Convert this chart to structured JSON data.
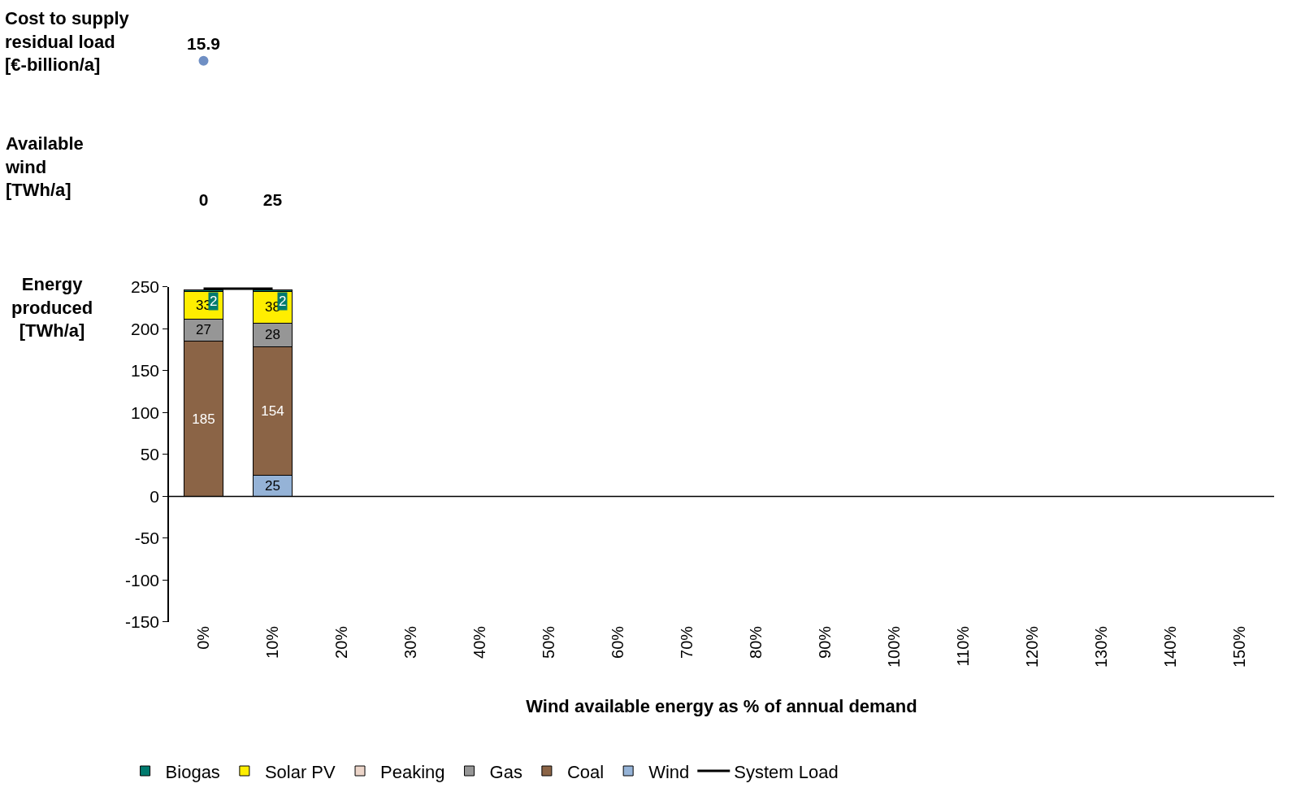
{
  "chart_data": [
    {
      "type": "other",
      "ylabel": "Cost to supply residual load [€-billion/a]",
      "categories": [
        null,
        null,
        null,
        null,
        null,
        null,
        null,
        null,
        null,
        null,
        null,
        null,
        null,
        null,
        null,
        null
      ],
      "values": [
        15.9,
        null,
        null,
        null,
        null,
        null,
        null,
        null,
        null,
        null,
        null,
        null,
        null,
        null,
        null,
        null
      ],
      "color": "#6f8fc4",
      "data_labels": true
    },
    {
      "type": "other",
      "ylabel": "Available wind [TWh/a]",
      "categories": [
        null,
        null,
        null,
        null,
        null,
        null,
        null,
        null,
        null,
        null,
        null,
        null,
        null,
        null,
        null,
        null
      ],
      "values": [
        0,
        25,
        null,
        null,
        null,
        null,
        null,
        null,
        null,
        null,
        null,
        null,
        null,
        null,
        null,
        null
      ],
      "data_labels": true
    },
    {
      "type": "bar",
      "stacked": true,
      "ylabel": "Energy produced [TWh/a]",
      "xlabel": "Wind available energy as % of annual demand",
      "categories": [
        "0%",
        "10%",
        "20%",
        "30%",
        "40%",
        "50%",
        "60%",
        "70%",
        "80%",
        "90%",
        "100%",
        "110%",
        "120%",
        "130%",
        "140%",
        "150%"
      ],
      "series": [
        {
          "name": "Wind",
          "color": "#95b3d7",
          "values": [
            null,
            25,
            null,
            null,
            null,
            null,
            null,
            null,
            null,
            null,
            null,
            null,
            null,
            null,
            null,
            null
          ],
          "value_labels": [
            null,
            "25",
            null,
            null,
            null,
            null,
            null,
            null,
            null,
            null,
            null,
            null,
            null,
            null,
            null,
            null
          ]
        },
        {
          "name": "Coal",
          "color": "#8b6446",
          "values": [
            185,
            154,
            null,
            null,
            null,
            null,
            null,
            null,
            null,
            null,
            null,
            null,
            null,
            null,
            null,
            null
          ],
          "value_labels": [
            "185",
            "154",
            null,
            null,
            null,
            null,
            null,
            null,
            null,
            null,
            null,
            null,
            null,
            null,
            null,
            null
          ]
        },
        {
          "name": "Gas",
          "color": "#969696",
          "values": [
            27,
            28,
            null,
            null,
            null,
            null,
            null,
            null,
            null,
            null,
            null,
            null,
            null,
            null,
            null,
            null
          ],
          "value_labels": [
            "27",
            "28",
            null,
            null,
            null,
            null,
            null,
            null,
            null,
            null,
            null,
            null,
            null,
            null,
            null,
            null
          ]
        },
        {
          "name": "Peaking",
          "color": "#ecd5c9",
          "values": [
            null,
            null,
            null,
            null,
            null,
            null,
            null,
            null,
            null,
            null,
            null,
            null,
            null,
            null,
            null,
            null
          ]
        },
        {
          "name": "Solar PV",
          "color": "#ffee00",
          "values": [
            33,
            38,
            null,
            null,
            null,
            null,
            null,
            null,
            null,
            null,
            null,
            null,
            null,
            null,
            null,
            null
          ],
          "value_labels": [
            "33",
            "38",
            null,
            null,
            null,
            null,
            null,
            null,
            null,
            null,
            null,
            null,
            null,
            null,
            null,
            null
          ]
        },
        {
          "name": "Biogas",
          "color": "#007a6e",
          "values": [
            2,
            2,
            null,
            null,
            null,
            null,
            null,
            null,
            null,
            null,
            null,
            null,
            null,
            null,
            null,
            null
          ],
          "value_labels": [
            "2",
            "2",
            null,
            null,
            null,
            null,
            null,
            null,
            null,
            null,
            null,
            null,
            null,
            null,
            null,
            null
          ]
        },
        {
          "name": "System Load",
          "type": "line",
          "color": "#000000",
          "marker": "none",
          "values": [
            248,
            248,
            null,
            null,
            null,
            null,
            null,
            null,
            null,
            null,
            null,
            null,
            null,
            null,
            null,
            null
          ]
        }
      ],
      "ylim": [
        -150,
        250
      ],
      "yticks": [
        -150,
        -100,
        -50,
        0,
        50,
        100,
        150,
        200,
        250
      ],
      "grid": false,
      "legend": "bottom",
      "tick_labels": "xy"
    }
  ]
}
